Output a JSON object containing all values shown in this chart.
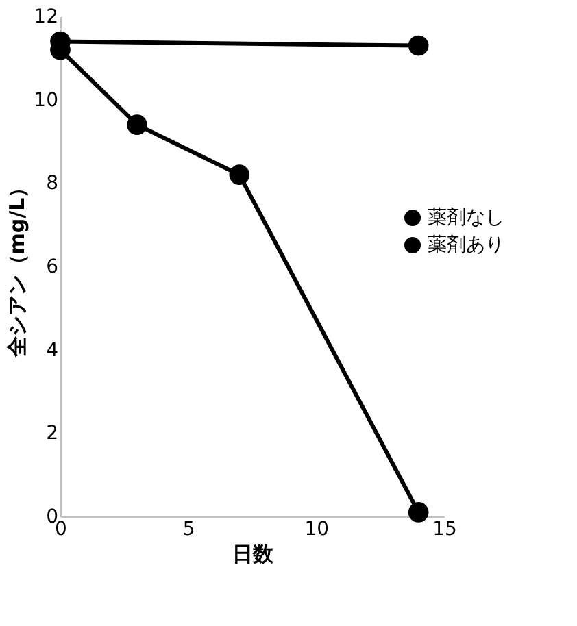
{
  "chart_data": {
    "type": "line",
    "xlabel": "日数",
    "ylabel": "全シアン（mg/L）",
    "xlim": [
      0,
      15
    ],
    "xticks": [
      0,
      5,
      10,
      15
    ],
    "ylim": [
      0,
      12
    ],
    "yticks": [
      0,
      2,
      4,
      6,
      8,
      10,
      12
    ],
    "grid": false,
    "legend": "right",
    "marker": "circle",
    "line_style": "solid",
    "series": [
      {
        "name": "薬剤なし",
        "color": "#000000",
        "x": [
          0,
          14
        ],
        "values": [
          11.4,
          11.3
        ]
      },
      {
        "name": "薬剤あり",
        "color": "#000000",
        "x": [
          0,
          3,
          7,
          14
        ],
        "values": [
          11.2,
          9.4,
          8.2,
          0.1
        ]
      }
    ]
  }
}
